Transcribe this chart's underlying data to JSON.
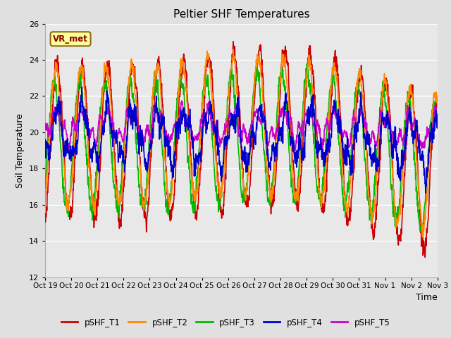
{
  "title": "Peltier SHF Temperatures",
  "ylabel": "Soil Temperature",
  "xlabel": "Time",
  "ylim": [
    12,
    26
  ],
  "background_color": "#e0e0e0",
  "plot_background": "#e8e8e8",
  "grid_color": "#ffffff",
  "annotation_text": "VR_met",
  "annotation_bg": "#ffff99",
  "annotation_border": "#8b6914",
  "series_colors": {
    "pSHF_T1": "#cc0000",
    "pSHF_T2": "#ff8800",
    "pSHF_T3": "#00bb00",
    "pSHF_T4": "#0000cc",
    "pSHF_T5": "#cc00cc"
  },
  "tick_labels": [
    "Oct 19",
    "Oct 20",
    "Oct 21",
    "Oct 22",
    "Oct 23",
    "Oct 24",
    "Oct 25",
    "Oct 26",
    "Oct 27",
    "Oct 28",
    "Oct 29",
    "Oct 30",
    "Oct 31",
    "Nov 1",
    "Nov 2",
    "Nov 3"
  ],
  "n_days": 15.5,
  "samples_per_day": 96,
  "figsize": [
    6.4,
    4.8
  ],
  "dpi": 100
}
